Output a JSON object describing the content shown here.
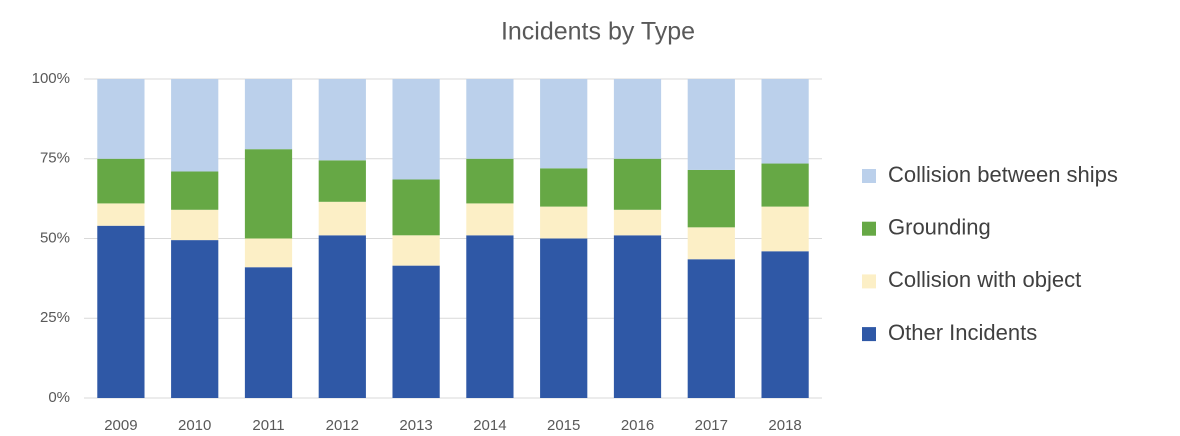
{
  "chart_data": {
    "type": "stacked_bar",
    "title": "Incidents by Type",
    "categories": [
      "2009",
      "2010",
      "2011",
      "2012",
      "2013",
      "2014",
      "2015",
      "2016",
      "2017",
      "2018"
    ],
    "series": [
      {
        "name": "Other Incidents",
        "color": "#2f58a6",
        "values": [
          54,
          49.5,
          41,
          51,
          41.5,
          51,
          50,
          51,
          43.5,
          46
        ]
      },
      {
        "name": "Collision with object",
        "color": "#fcefc6",
        "values": [
          7,
          9.5,
          9,
          10.5,
          9.5,
          10,
          10,
          8,
          10,
          14
        ]
      },
      {
        "name": "Grounding",
        "color": "#66a845",
        "values": [
          14,
          12,
          28,
          13,
          17.5,
          14,
          12,
          16,
          18,
          13.5
        ]
      },
      {
        "name": "Collision between ships",
        "color": "#bbd0eb",
        "values": [
          25,
          29,
          22,
          25.5,
          31.5,
          25,
          28,
          25,
          28.5,
          26.5
        ]
      }
    ],
    "ylim": [
      0,
      100
    ],
    "yticks": [
      {
        "value": 0,
        "label": "0%"
      },
      {
        "value": 25,
        "label": "25%"
      },
      {
        "value": 50,
        "label": "50%"
      },
      {
        "value": 75,
        "label": "75%"
      },
      {
        "value": 100,
        "label": "100%"
      }
    ],
    "grid": true,
    "legend": "right"
  }
}
